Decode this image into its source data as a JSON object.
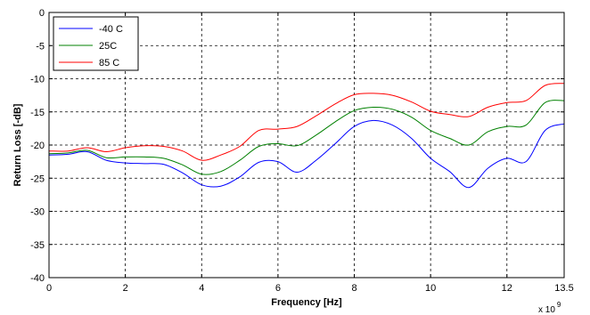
{
  "chart_data": {
    "type": "line",
    "title": "",
    "xlabel": "Frequency [Hz]",
    "ylabel": "Return Loss [-dB]",
    "xlim": [
      0,
      13.5
    ],
    "ylim": [
      -40,
      0
    ],
    "x_ticks": [
      0,
      2,
      4,
      6,
      8,
      10,
      12,
      13.5
    ],
    "x_tick_labels": [
      "0",
      "2",
      "4",
      "6",
      "8",
      "10",
      "12",
      "13.5"
    ],
    "x_multiplier_base": "x 10",
    "x_multiplier_exp": "9",
    "y_ticks": [
      0,
      -5,
      -10,
      -15,
      -20,
      -25,
      -30,
      -35,
      -40
    ],
    "y_tick_labels": [
      "0",
      "-5",
      "-10",
      "-15",
      "-20",
      "-25",
      "-30",
      "-35",
      "-40"
    ],
    "grid": true,
    "legend_position": "top-left",
    "series": [
      {
        "name": "-40 C",
        "color": "#0000ff",
        "x": [
          0,
          0.5,
          1.0,
          1.5,
          2.0,
          2.5,
          3.0,
          3.5,
          4.0,
          4.5,
          5.0,
          5.5,
          6.0,
          6.5,
          7.0,
          7.5,
          8.0,
          8.5,
          9.0,
          9.5,
          10.0,
          10.5,
          11.0,
          11.5,
          12.0,
          12.5,
          13.0,
          13.5
        ],
        "y": [
          -21.5,
          -21.4,
          -21.0,
          -22.3,
          -22.7,
          -22.8,
          -22.9,
          -24.2,
          -26.0,
          -26.2,
          -24.8,
          -22.6,
          -22.5,
          -24.1,
          -22.3,
          -19.8,
          -17.2,
          -16.3,
          -17.0,
          -19.0,
          -22.0,
          -24.0,
          -26.4,
          -23.5,
          -22.0,
          -22.5,
          -17.8,
          -16.8
        ]
      },
      {
        "name": "25C",
        "color": "#008000",
        "x": [
          0,
          0.5,
          1.0,
          1.5,
          2.0,
          2.5,
          3.0,
          3.5,
          4.0,
          4.5,
          5.0,
          5.5,
          6.0,
          6.5,
          7.0,
          7.5,
          8.0,
          8.5,
          9.0,
          9.5,
          10.0,
          10.5,
          11.0,
          11.5,
          12.0,
          12.5,
          13.0,
          13.5
        ],
        "y": [
          -21.3,
          -21.2,
          -20.8,
          -21.9,
          -21.8,
          -21.8,
          -22.0,
          -23.0,
          -24.4,
          -24.0,
          -22.3,
          -20.2,
          -19.8,
          -20.1,
          -18.5,
          -16.5,
          -14.8,
          -14.3,
          -14.6,
          -15.8,
          -17.8,
          -19.0,
          -20.0,
          -18.0,
          -17.2,
          -17.0,
          -13.6,
          -13.3
        ]
      },
      {
        "name": "85 C",
        "color": "#ff0000",
        "x": [
          0,
          0.5,
          1.0,
          1.5,
          2.0,
          2.5,
          3.0,
          3.5,
          4.0,
          4.5,
          5.0,
          5.5,
          6.0,
          6.5,
          7.0,
          7.5,
          8.0,
          8.5,
          9.0,
          9.5,
          10.0,
          10.5,
          11.0,
          11.5,
          12.0,
          12.5,
          13.0,
          13.5
        ],
        "y": [
          -20.9,
          -20.9,
          -20.4,
          -21.0,
          -20.4,
          -20.1,
          -20.2,
          -20.9,
          -22.3,
          -21.5,
          -20.2,
          -17.8,
          -17.6,
          -17.2,
          -15.6,
          -13.8,
          -12.4,
          -12.2,
          -12.5,
          -13.5,
          -14.9,
          -15.4,
          -15.7,
          -14.3,
          -13.6,
          -13.3,
          -11.0,
          -10.7
        ]
      }
    ]
  }
}
